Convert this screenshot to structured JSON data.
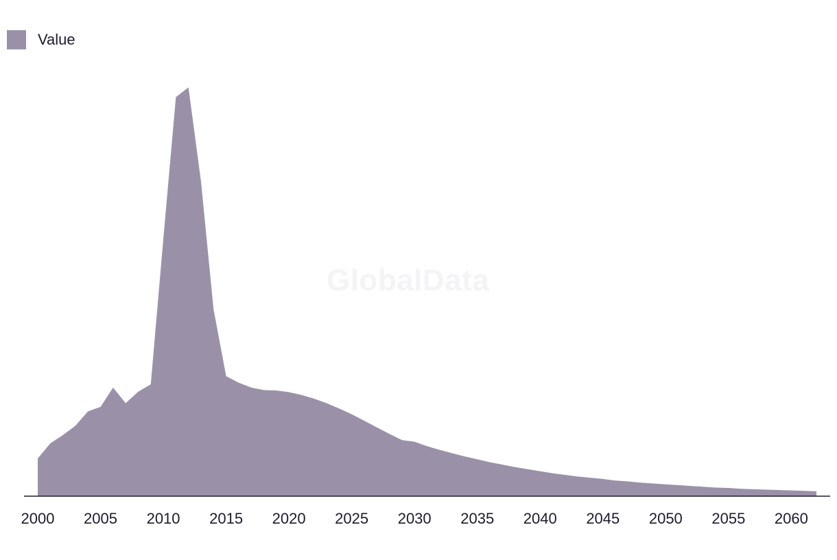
{
  "legend": {
    "label": "Value",
    "color": "#9a91a9"
  },
  "watermark": "GlobalData",
  "chart_data": {
    "type": "area",
    "title": "",
    "xlabel": "",
    "ylabel": "",
    "grid": false,
    "legend_position": "top-left",
    "xlim": [
      2000,
      2062
    ],
    "ylim": [
      0,
      100
    ],
    "x_ticks": [
      2000,
      2005,
      2010,
      2015,
      2020,
      2025,
      2030,
      2035,
      2040,
      2045,
      2050,
      2055,
      2060
    ],
    "series": [
      {
        "name": "Value",
        "color": "#9a91a9",
        "x": [
          2000,
          2001,
          2002,
          2003,
          2004,
          2005,
          2006,
          2007,
          2008,
          2009,
          2010,
          2011,
          2012,
          2013,
          2014,
          2015,
          2016,
          2017,
          2018,
          2019,
          2020,
          2021,
          2022,
          2023,
          2024,
          2025,
          2026,
          2027,
          2028,
          2029,
          2030,
          2031,
          2032,
          2033,
          2034,
          2035,
          2036,
          2037,
          2038,
          2039,
          2040,
          2041,
          2042,
          2043,
          2044,
          2045,
          2046,
          2047,
          2048,
          2049,
          2050,
          2051,
          2052,
          2053,
          2054,
          2055,
          2056,
          2057,
          2058,
          2059,
          2060,
          2061,
          2062
        ],
        "values": [
          9.2,
          12.9,
          14.9,
          17.2,
          20.7,
          21.8,
          26.5,
          22.7,
          25.5,
          27.3,
          62.8,
          97.4,
          99.8,
          76.8,
          45.6,
          29.3,
          27.7,
          26.5,
          25.9,
          25.8,
          25.4,
          24.7,
          23.8,
          22.7,
          21.4,
          20.0,
          18.4,
          16.8,
          15.2,
          13.7,
          13.3,
          12.2,
          11.3,
          10.5,
          9.7,
          9.0,
          8.3,
          7.7,
          7.1,
          6.6,
          6.1,
          5.6,
          5.2,
          4.8,
          4.5,
          4.2,
          3.8,
          3.6,
          3.3,
          3.1,
          2.9,
          2.7,
          2.5,
          2.3,
          2.1,
          2.0,
          1.8,
          1.7,
          1.6,
          1.5,
          1.4,
          1.3,
          1.2
        ]
      }
    ]
  }
}
